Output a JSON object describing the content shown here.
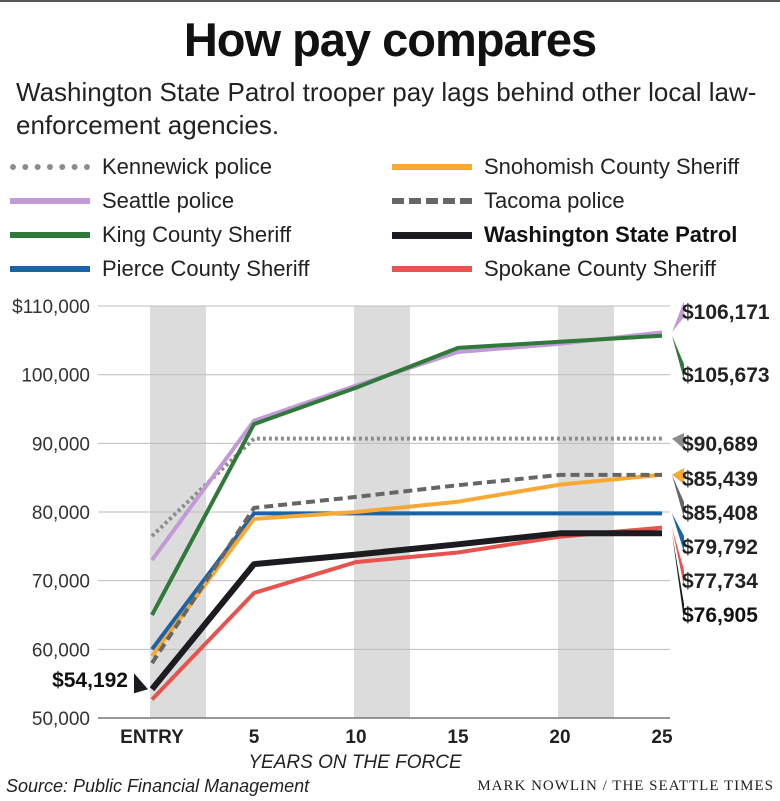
{
  "title": "How pay compares",
  "subtitle": "Washington State Patrol trooper pay lags behind other local law-enforcement agencies.",
  "source": "Source: Public Financial Management",
  "credit": "MARK NOWLIN / THE SEATTLE TIMES",
  "chart_data": {
    "type": "line",
    "xlabel": "YEARS ON THE FORCE",
    "ylabel": "",
    "categories": [
      "ENTRY",
      "5",
      "10",
      "15",
      "20",
      "25"
    ],
    "ylim": [
      50000,
      110000
    ],
    "y_ticks": [
      {
        "value": 110000,
        "label": "$110,000"
      },
      {
        "value": 100000,
        "label": "100,000"
      },
      {
        "value": 90000,
        "label": "90,000"
      },
      {
        "value": 80000,
        "label": "80,000"
      },
      {
        "value": 70000,
        "label": "70,000"
      },
      {
        "value": 60000,
        "label": "60,000"
      },
      {
        "value": 50000,
        "label": "50,000"
      }
    ],
    "shaded_bands": [
      "ENTRY",
      "10",
      "20"
    ],
    "entry_annotation": {
      "series": "Washington State Patrol",
      "label": "$54,192"
    },
    "series": [
      {
        "name": "Kennewick police",
        "color": "#8c8c8c",
        "style": "dotted",
        "values": [
          76500,
          90689,
          90689,
          90689,
          90689,
          90689
        ],
        "end_label": "$90,689"
      },
      {
        "name": "Seattle police",
        "color": "#c29ad6",
        "style": "solid",
        "values": [
          73000,
          93300,
          98400,
          103300,
          104500,
          106171
        ],
        "end_label": "$106,171"
      },
      {
        "name": "King County Sheriff",
        "color": "#2f7a3a",
        "style": "solid",
        "values": [
          65000,
          92800,
          98100,
          103900,
          104800,
          105673
        ],
        "end_label": "$105,673"
      },
      {
        "name": "Pierce County Sheriff",
        "color": "#1a63a8",
        "style": "solid",
        "values": [
          60000,
          79792,
          79792,
          79792,
          79792,
          79792
        ],
        "end_label": "$79,792"
      },
      {
        "name": "Snohomish County Sheriff",
        "color": "#f7a933",
        "style": "solid",
        "values": [
          59000,
          79000,
          80000,
          81500,
          84000,
          85439
        ],
        "end_label": "$85,439"
      },
      {
        "name": "Tacoma police",
        "color": "#666666",
        "style": "dashed",
        "values": [
          58000,
          80600,
          82200,
          83900,
          85400,
          85408
        ],
        "end_label": "$85,408"
      },
      {
        "name": "Washington State Patrol",
        "color": "#1c1b20",
        "style": "solid",
        "bold": true,
        "values": [
          54192,
          72400,
          73800,
          75300,
          76905,
          76905
        ],
        "end_label": "$76,905"
      },
      {
        "name": "Spokane County Sheriff",
        "color": "#e8524f",
        "style": "solid",
        "values": [
          52700,
          68200,
          72700,
          74100,
          76400,
          77734
        ],
        "end_label": "$77,734"
      }
    ]
  }
}
